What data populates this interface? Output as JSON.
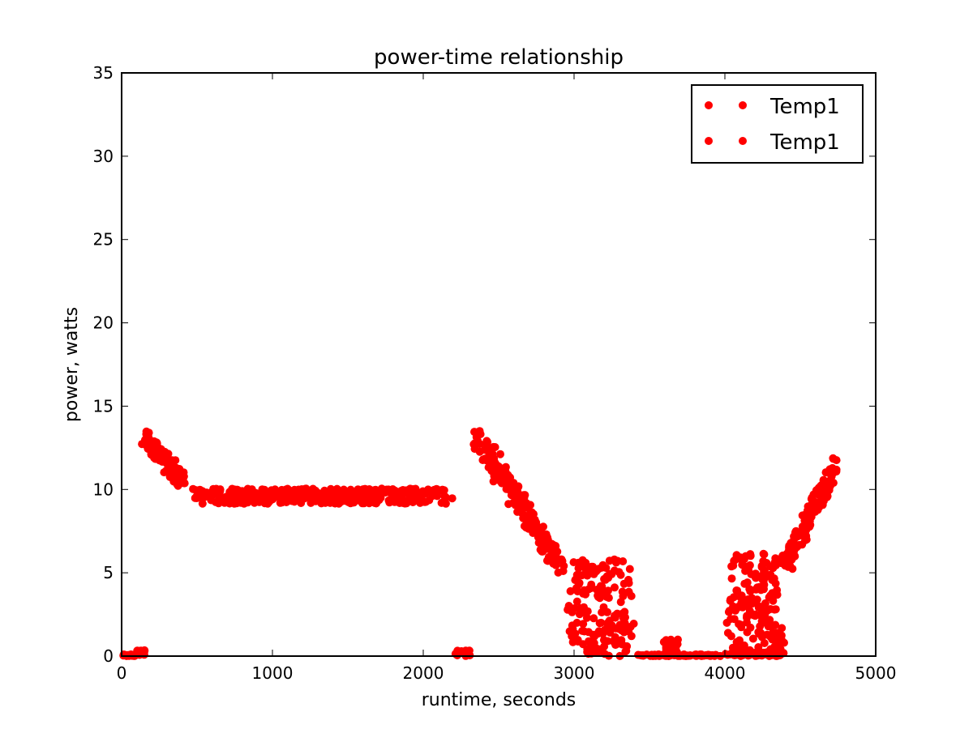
{
  "chart_data": {
    "type": "scatter",
    "title": "power-time relationship",
    "xlabel": "runtime, seconds",
    "ylabel": "power, watts",
    "xlim": [
      0,
      5000
    ],
    "ylim": [
      0,
      35
    ],
    "xticks": [
      0,
      1000,
      2000,
      3000,
      4000,
      5000
    ],
    "yticks": [
      0,
      5,
      10,
      15,
      20,
      25,
      30,
      35
    ],
    "grid": false,
    "legend_position": "top-right",
    "marker_color": "#ff0000",
    "series": [
      {
        "name": "Temp1",
        "segments": [
          {
            "x_range": [
              0,
              100
            ],
            "y_range": [
              0.0,
              0.1
            ],
            "count": 25
          },
          {
            "x_range": [
              100,
              160
            ],
            "y_range": [
              0.05,
              0.35
            ],
            "count": 12
          },
          {
            "x_range": [
              130,
              430
            ],
            "y_start": 13.0,
            "y_end": 10.6,
            "spread": 0.6,
            "count": 90
          },
          {
            "x_range": [
              430,
              2210
            ],
            "y_start": 9.6,
            "y_end": 9.6,
            "spread": 0.45,
            "count": 460
          },
          {
            "x_range": [
              2210,
              2320
            ],
            "y_range": [
              0.0,
              0.35
            ],
            "count": 20
          },
          {
            "x_range": [
              2320,
              2950
            ],
            "y_start": 13.0,
            "y_end": 5.5,
            "spread": 0.55,
            "count": 180
          },
          {
            "x_range": [
              2950,
              3400
            ],
            "y_range": [
              0.0,
              5.8
            ],
            "count": 170
          },
          {
            "x_range": [
              3400,
              4000
            ],
            "y_range": [
              0.0,
              0.1
            ],
            "count": 70
          },
          {
            "x_range": [
              3590,
              3700
            ],
            "y_range": [
              0.0,
              1.0
            ],
            "count": 40
          },
          {
            "x_range": [
              4000,
              4420
            ],
            "y_range": [
              0.0,
              6.2
            ],
            "count": 170
          },
          {
            "x_range": [
              4000,
              4420
            ],
            "y_range": [
              0.0,
              0.25
            ],
            "count": 45
          },
          {
            "x_range": [
              4380,
              4760
            ],
            "y_start": 5.5,
            "y_end": 11.4,
            "spread": 0.55,
            "count": 130
          }
        ]
      },
      {
        "name": "Temp1",
        "segments": []
      }
    ]
  }
}
